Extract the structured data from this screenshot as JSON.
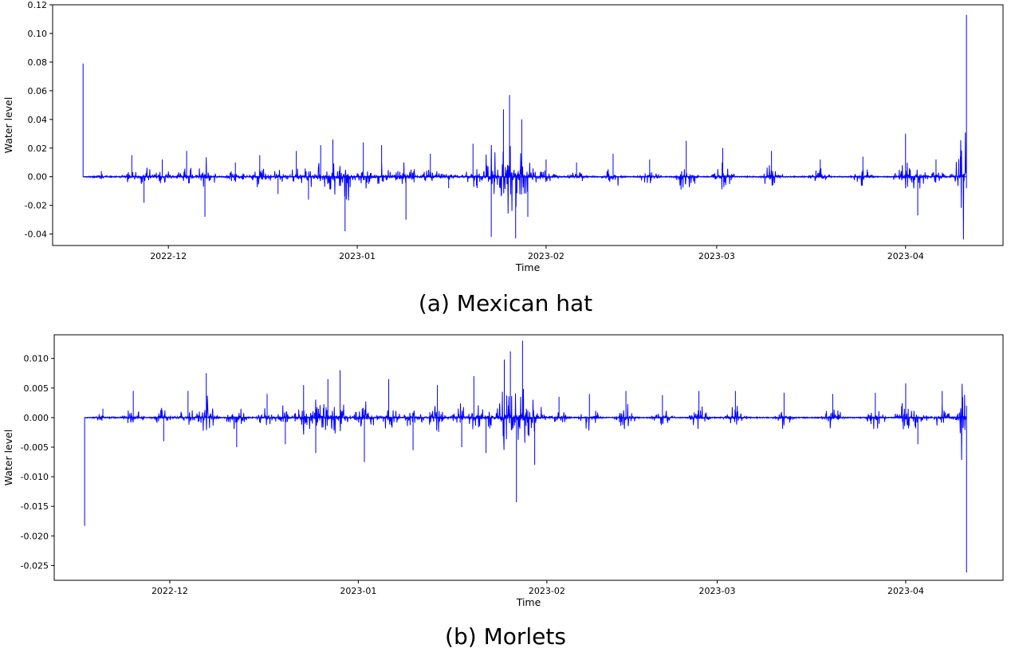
{
  "chart_data": [
    {
      "type": "line",
      "caption": "(a) Mexican hat",
      "xlabel": "Time",
      "ylabel": "Water level",
      "xlim": [
        "2022-11-12",
        "2023-04-17"
      ],
      "ylim": [
        -0.048,
        0.12
      ],
      "x_ticks": [
        "2022-12",
        "2023-01",
        "2023-02",
        "2023-03",
        "2023-04"
      ],
      "y_ticks": [
        "0.12",
        "0.10",
        "0.08",
        "0.06",
        "0.04",
        "0.02",
        "0.00",
        "-0.02",
        "-0.04"
      ],
      "y_tick_values": [
        0.12,
        0.1,
        0.08,
        0.06,
        0.04,
        0.02,
        0.0,
        -0.02,
        -0.04
      ],
      "grid": false,
      "line_color": "#0000ff",
      "series": [
        {
          "x": [
            "2022-11-17",
            "2022-11-17",
            "2022-11-20",
            "2022-11-25",
            "2022-11-27",
            "2022-11-30",
            "2022-12-04",
            "2022-12-07",
            "2022-12-12",
            "2022-12-16",
            "2022-12-19",
            "2022-12-22",
            "2022-12-24",
            "2022-12-26",
            "2022-12-28",
            "2022-12-30",
            "2023-01-02",
            "2023-01-05",
            "2023-01-09",
            "2023-01-13",
            "2023-01-16",
            "2023-01-20",
            "2023-01-23",
            "2023-01-25",
            "2023-01-26",
            "2023-01-27",
            "2023-01-28",
            "2023-01-29",
            "2023-02-01",
            "2023-02-06",
            "2023-02-12",
            "2023-02-18",
            "2023-02-24",
            "2023-03-02",
            "2023-03-10",
            "2023-03-18",
            "2023-03-25",
            "2023-04-01",
            "2023-04-03",
            "2023-04-06",
            "2023-04-10",
            "2023-04-11",
            "2023-04-11"
          ],
          "y": [
            0.079,
            0.0,
            0.004,
            0.015,
            -0.018,
            0.012,
            0.018,
            -0.028,
            0.01,
            0.015,
            -0.012,
            0.018,
            -0.016,
            0.022,
            0.026,
            -0.038,
            0.024,
            0.022,
            -0.03,
            0.016,
            -0.008,
            0.023,
            -0.042,
            0.047,
            0.057,
            -0.043,
            0.04,
            -0.028,
            0.012,
            0.01,
            0.016,
            0.012,
            0.025,
            0.02,
            0.018,
            0.012,
            0.014,
            0.03,
            -0.027,
            0.012,
            0.014,
            0.113,
            -0.008
          ]
        }
      ]
    },
    {
      "type": "line",
      "caption": "(b) Morlets",
      "xlabel": "Time",
      "ylabel": "Water level",
      "xlim": [
        "2022-11-12",
        "2023-04-17"
      ],
      "ylim": [
        -0.0275,
        0.014
      ],
      "x_ticks": [
        "2022-12",
        "2023-01",
        "2023-02",
        "2023-03",
        "2023-04"
      ],
      "y_ticks": [
        "0.010",
        "0.005",
        "0.000",
        "-0.005",
        "-0.010",
        "-0.015",
        "-0.020",
        "-0.025"
      ],
      "y_tick_values": [
        0.01,
        0.005,
        0.0,
        -0.005,
        -0.01,
        -0.015,
        -0.02,
        -0.025
      ],
      "grid": false,
      "line_color": "#0000ff",
      "series": [
        {
          "x": [
            "2022-11-17",
            "2022-11-17",
            "2022-11-20",
            "2022-11-25",
            "2022-11-30",
            "2022-12-04",
            "2022-12-07",
            "2022-12-12",
            "2022-12-17",
            "2022-12-20",
            "2022-12-23",
            "2022-12-25",
            "2022-12-27",
            "2022-12-29",
            "2023-01-02",
            "2023-01-06",
            "2023-01-10",
            "2023-01-14",
            "2023-01-18",
            "2023-01-20",
            "2023-01-22",
            "2023-01-25",
            "2023-01-26",
            "2023-01-27",
            "2023-01-28",
            "2023-01-30",
            "2023-02-03",
            "2023-02-08",
            "2023-02-14",
            "2023-02-20",
            "2023-02-26",
            "2023-03-04",
            "2023-03-12",
            "2023-03-20",
            "2023-03-27",
            "2023-04-01",
            "2023-04-03",
            "2023-04-07",
            "2023-04-11",
            "2023-04-11"
          ],
          "y": [
            -0.0183,
            0.0,
            0.0015,
            0.0045,
            -0.004,
            0.0045,
            0.0075,
            -0.005,
            0.004,
            -0.0045,
            0.0055,
            -0.006,
            0.0065,
            0.008,
            -0.0075,
            0.0065,
            -0.0055,
            0.0055,
            -0.005,
            0.007,
            -0.006,
            0.0098,
            0.0112,
            -0.0143,
            0.013,
            -0.008,
            0.0035,
            0.004,
            0.0045,
            0.0038,
            0.0045,
            0.0045,
            0.0042,
            0.004,
            0.0042,
            0.0058,
            -0.0045,
            0.0045,
            -0.0262,
            0.002
          ]
        }
      ]
    }
  ]
}
